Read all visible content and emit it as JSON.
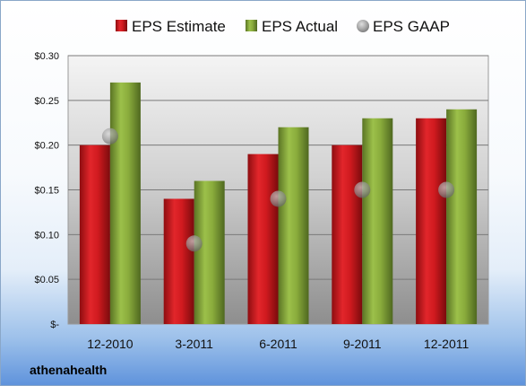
{
  "chart_data": {
    "type": "bar",
    "categories": [
      "12-2010",
      "3-2011",
      "6-2011",
      "9-2011",
      "12-2011"
    ],
    "series": [
      {
        "name": "EPS Estimate",
        "type": "bar",
        "values": [
          0.2,
          0.14,
          0.19,
          0.2,
          0.23
        ]
      },
      {
        "name": "EPS Actual",
        "type": "bar",
        "values": [
          0.27,
          0.16,
          0.22,
          0.23,
          0.24
        ]
      },
      {
        "name": "EPS GAAP",
        "type": "scatter",
        "values": [
          0.21,
          0.09,
          0.14,
          0.15,
          0.15
        ]
      }
    ],
    "ylim": [
      0,
      0.3
    ],
    "yticks": [
      0,
      0.05,
      0.1,
      0.15,
      0.2,
      0.25,
      0.3
    ],
    "ytick_labels": [
      "$-",
      "$0.05",
      "$0.10",
      "$0.15",
      "$0.20",
      "$0.25",
      "$0.30"
    ],
    "legend_position": "top",
    "grid": true,
    "colors": {
      "EPS Estimate": "#d01a1f",
      "EPS Actual": "#8aac3c",
      "EPS GAAP": "#a0a0a0"
    }
  },
  "brand_label": "athenahealth"
}
